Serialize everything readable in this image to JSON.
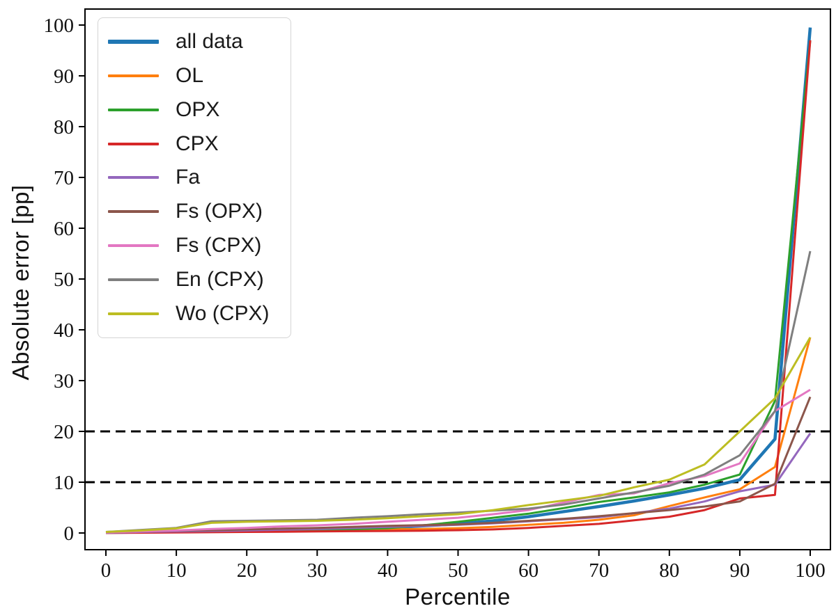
{
  "chart_data": {
    "type": "line",
    "title": "",
    "xlabel": "Percentile",
    "ylabel": "Absolute error [pp]",
    "x_ticks": [
      0,
      10,
      20,
      30,
      40,
      50,
      60,
      70,
      80,
      90,
      100
    ],
    "y_ticks": [
      0,
      10,
      20,
      30,
      40,
      50,
      60,
      70,
      80,
      90,
      100
    ],
    "xlim": [
      -3,
      103
    ],
    "ylim": [
      -3.3,
      103.3
    ],
    "grid": false,
    "legend_position": "upper left",
    "reference_lines": [
      {
        "y": 10,
        "style": "dashed",
        "color": "#000000"
      },
      {
        "y": 20,
        "style": "dashed",
        "color": "#000000"
      }
    ],
    "x": [
      0,
      5,
      10,
      15,
      20,
      25,
      30,
      35,
      40,
      45,
      50,
      55,
      60,
      65,
      70,
      75,
      80,
      85,
      90,
      95,
      100
    ],
    "series": [
      {
        "name": "all data",
        "color": "#1f77b4",
        "linewidth": 4.5,
        "values": [
          0.1,
          0.2,
          0.3,
          0.35,
          0.45,
          0.5,
          0.6,
          0.8,
          1.0,
          1.4,
          1.8,
          2.4,
          3.2,
          4.2,
          5.2,
          6.3,
          7.5,
          8.8,
          10.5,
          18.5,
          99.5
        ]
      },
      {
        "name": "OL",
        "color": "#ff7f0e",
        "linewidth": 3,
        "values": [
          0.05,
          0.1,
          0.15,
          0.2,
          0.3,
          0.4,
          0.5,
          0.6,
          0.7,
          0.8,
          0.95,
          1.2,
          1.6,
          2.0,
          2.6,
          3.5,
          5.3,
          7.0,
          8.6,
          13.0,
          38.5
        ]
      },
      {
        "name": "OPX",
        "color": "#2ca02c",
        "linewidth": 3,
        "values": [
          0.05,
          0.1,
          0.2,
          0.3,
          0.4,
          0.5,
          0.6,
          0.75,
          0.95,
          1.5,
          2.2,
          3.0,
          3.8,
          4.9,
          6.1,
          7.0,
          8.0,
          9.5,
          11.5,
          26.0,
          97.0
        ]
      },
      {
        "name": "CPX",
        "color": "#d62728",
        "linewidth": 3,
        "values": [
          0.02,
          0.05,
          0.1,
          0.15,
          0.2,
          0.25,
          0.3,
          0.35,
          0.4,
          0.45,
          0.55,
          0.7,
          1.0,
          1.4,
          1.8,
          2.5,
          3.2,
          4.5,
          6.8,
          7.5,
          97.0
        ]
      },
      {
        "name": "Fa",
        "color": "#9467bd",
        "linewidth": 3,
        "values": [
          0.05,
          0.2,
          0.3,
          0.4,
          0.5,
          0.65,
          0.8,
          1.0,
          1.2,
          1.4,
          1.6,
          1.9,
          2.3,
          2.7,
          3.1,
          3.9,
          4.8,
          6.2,
          8.2,
          9.5,
          19.6
        ]
      },
      {
        "name": "Fs (OPX)",
        "color": "#8c564b",
        "linewidth": 3,
        "values": [
          0.1,
          0.3,
          0.45,
          0.55,
          0.7,
          0.85,
          1.0,
          1.2,
          1.4,
          1.55,
          1.7,
          2.0,
          2.4,
          2.8,
          3.3,
          3.9,
          4.5,
          5.2,
          6.2,
          9.7,
          26.8
        ]
      },
      {
        "name": "Fs (CPX)",
        "color": "#e377c2",
        "linewidth": 3,
        "values": [
          0.1,
          0.3,
          0.5,
          0.8,
          1.0,
          1.3,
          1.5,
          1.8,
          2.2,
          2.6,
          3.0,
          3.7,
          4.5,
          6.0,
          7.5,
          7.8,
          9.8,
          11.2,
          13.7,
          24.0,
          28.2
        ]
      },
      {
        "name": "En (CPX)",
        "color": "#7f7f7f",
        "linewidth": 3,
        "values": [
          0.2,
          0.6,
          1.0,
          2.3,
          2.4,
          2.5,
          2.6,
          3.0,
          3.3,
          3.7,
          4.0,
          4.4,
          4.8,
          5.6,
          6.8,
          8.0,
          9.3,
          11.5,
          15.3,
          24.0,
          55.5
        ]
      },
      {
        "name": "Wo (CPX)",
        "color": "#bcbd22",
        "linewidth": 3,
        "values": [
          0.2,
          0.5,
          0.9,
          2.0,
          2.2,
          2.3,
          2.4,
          2.6,
          2.9,
          3.3,
          3.7,
          4.5,
          5.5,
          6.4,
          7.3,
          9.0,
          10.5,
          13.5,
          20.0,
          26.5,
          38.5
        ]
      }
    ]
  }
}
